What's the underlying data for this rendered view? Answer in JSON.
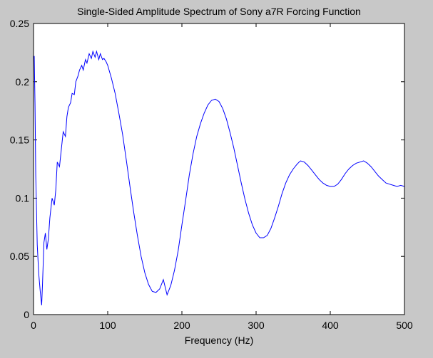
{
  "chart_data": {
    "type": "line",
    "title": "Single-Sided Amplitude Spectrum of Sony a7R Forcing  Function",
    "xlabel": "Frequency (Hz)",
    "ylabel": "",
    "xlim": [
      0,
      500
    ],
    "ylim": [
      0,
      0.25
    ],
    "x_ticks": [
      "0",
      "100",
      "200",
      "300",
      "400",
      "500"
    ],
    "y_ticks": [
      "0",
      "0.05",
      "0.1",
      "0.15",
      "0.2",
      "0.25"
    ],
    "grid": false,
    "line_color": "#0000ff",
    "series": [
      {
        "x": [
          0,
          1,
          2,
          3,
          5,
          7,
          9,
          11,
          12,
          14,
          16,
          18,
          20,
          22,
          25,
          28,
          30,
          32,
          35,
          38,
          40,
          43,
          45,
          47,
          50,
          52,
          55,
          57,
          60,
          62,
          65,
          67,
          70,
          72,
          75,
          78,
          80,
          83,
          85,
          88,
          90,
          93,
          95,
          98,
          100,
          105,
          110,
          115,
          120,
          125,
          130,
          135,
          140,
          145,
          150,
          155,
          160,
          165,
          170,
          175,
          180,
          185,
          190,
          195,
          200,
          205,
          210,
          215,
          220,
          225,
          230,
          235,
          240,
          245,
          250,
          255,
          260,
          265,
          270,
          275,
          280,
          285,
          290,
          295,
          300,
          305,
          310,
          315,
          320,
          325,
          330,
          335,
          340,
          345,
          350,
          355,
          358,
          360,
          365,
          370,
          375,
          380,
          385,
          390,
          395,
          400,
          405,
          410,
          415,
          420,
          425,
          430,
          435,
          440,
          445,
          450,
          455,
          460,
          465,
          470,
          475,
          480,
          485,
          490,
          495,
          500
        ],
        "y": [
          0.22,
          0.222,
          0.18,
          0.12,
          0.06,
          0.035,
          0.02,
          0.008,
          0.025,
          0.062,
          0.07,
          0.056,
          0.065,
          0.083,
          0.1,
          0.094,
          0.107,
          0.131,
          0.127,
          0.145,
          0.157,
          0.153,
          0.17,
          0.178,
          0.182,
          0.19,
          0.189,
          0.2,
          0.205,
          0.21,
          0.214,
          0.21,
          0.219,
          0.216,
          0.224,
          0.22,
          0.226,
          0.221,
          0.226,
          0.219,
          0.224,
          0.219,
          0.22,
          0.217,
          0.214,
          0.203,
          0.19,
          0.173,
          0.155,
          0.133,
          0.11,
          0.088,
          0.068,
          0.05,
          0.036,
          0.026,
          0.02,
          0.019,
          0.022,
          0.03,
          0.017,
          0.025,
          0.038,
          0.055,
          0.077,
          0.098,
          0.12,
          0.138,
          0.153,
          0.164,
          0.173,
          0.18,
          0.184,
          0.185,
          0.183,
          0.177,
          0.168,
          0.156,
          0.143,
          0.128,
          0.113,
          0.099,
          0.087,
          0.077,
          0.07,
          0.066,
          0.066,
          0.068,
          0.074,
          0.083,
          0.093,
          0.104,
          0.113,
          0.12,
          0.125,
          0.129,
          0.131,
          0.132,
          0.131,
          0.128,
          0.124,
          0.12,
          0.116,
          0.113,
          0.111,
          0.11,
          0.11,
          0.112,
          0.116,
          0.121,
          0.125,
          0.128,
          0.13,
          0.131,
          0.132,
          0.13,
          0.127,
          0.123,
          0.119,
          0.116,
          0.113,
          0.112,
          0.111,
          0.11,
          0.111,
          0.11
        ]
      }
    ]
  }
}
